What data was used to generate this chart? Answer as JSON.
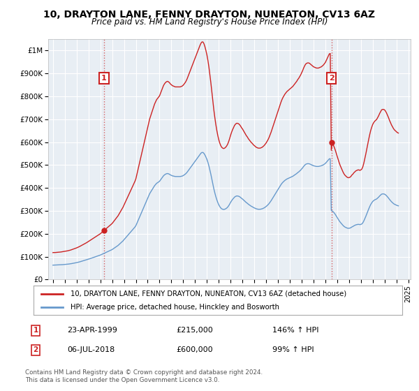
{
  "title": "10, DRAYTON LANE, FENNY DRAYTON, NUNEATON, CV13 6AZ",
  "subtitle": "Price paid vs. HM Land Registry's House Price Index (HPI)",
  "hpi_color": "#6699cc",
  "property_color": "#cc2222",
  "background_color": "#ffffff",
  "plot_bg_color": "#e8eef4",
  "grid_color": "#ffffff",
  "ylim": [
    0,
    1050000
  ],
  "yticks": [
    0,
    100000,
    200000,
    300000,
    400000,
    500000,
    600000,
    700000,
    800000,
    900000,
    1000000
  ],
  "ytick_labels": [
    "£0",
    "£100K",
    "£200K",
    "£300K",
    "£400K",
    "£500K",
    "£600K",
    "£700K",
    "£800K",
    "£900K",
    "£1M"
  ],
  "sale1_year": 1999.31,
  "sale1_price": 215000,
  "sale2_year": 2018.51,
  "sale2_price": 600000,
  "legend_line1": "10, DRAYTON LANE, FENNY DRAYTON, NUNEATON, CV13 6AZ (detached house)",
  "legend_line2": "HPI: Average price, detached house, Hinckley and Bosworth",
  "annotation1_date": "23-APR-1999",
  "annotation1_price": "£215,000",
  "annotation1_hpi": "146% ↑ HPI",
  "annotation2_date": "06-JUL-2018",
  "annotation2_price": "£600,000",
  "annotation2_hpi": "99% ↑ HPI",
  "footer_line1": "Contains HM Land Registry data © Crown copyright and database right 2024.",
  "footer_line2": "This data is licensed under the Open Government Licence v3.0.",
  "hpi_data_x": [
    1995.0,
    1995.083,
    1995.167,
    1995.25,
    1995.333,
    1995.417,
    1995.5,
    1995.583,
    1995.667,
    1995.75,
    1995.833,
    1995.917,
    1996.0,
    1996.083,
    1996.167,
    1996.25,
    1996.333,
    1996.417,
    1996.5,
    1996.583,
    1996.667,
    1996.75,
    1996.833,
    1996.917,
    1997.0,
    1997.083,
    1997.167,
    1997.25,
    1997.333,
    1997.417,
    1997.5,
    1997.583,
    1997.667,
    1997.75,
    1997.833,
    1997.917,
    1998.0,
    1998.083,
    1998.167,
    1998.25,
    1998.333,
    1998.417,
    1998.5,
    1998.583,
    1998.667,
    1998.75,
    1998.833,
    1998.917,
    1999.0,
    1999.083,
    1999.167,
    1999.25,
    1999.333,
    1999.417,
    1999.5,
    1999.583,
    1999.667,
    1999.75,
    1999.833,
    1999.917,
    2000.0,
    2000.083,
    2000.167,
    2000.25,
    2000.333,
    2000.417,
    2000.5,
    2000.583,
    2000.667,
    2000.75,
    2000.833,
    2000.917,
    2001.0,
    2001.083,
    2001.167,
    2001.25,
    2001.333,
    2001.417,
    2001.5,
    2001.583,
    2001.667,
    2001.75,
    2001.833,
    2001.917,
    2002.0,
    2002.083,
    2002.167,
    2002.25,
    2002.333,
    2002.417,
    2002.5,
    2002.583,
    2002.667,
    2002.75,
    2002.833,
    2002.917,
    2003.0,
    2003.083,
    2003.167,
    2003.25,
    2003.333,
    2003.417,
    2003.5,
    2003.583,
    2003.667,
    2003.75,
    2003.833,
    2003.917,
    2004.0,
    2004.083,
    2004.167,
    2004.25,
    2004.333,
    2004.417,
    2004.5,
    2004.583,
    2004.667,
    2004.75,
    2004.833,
    2004.917,
    2005.0,
    2005.083,
    2005.167,
    2005.25,
    2005.333,
    2005.417,
    2005.5,
    2005.583,
    2005.667,
    2005.75,
    2005.833,
    2005.917,
    2006.0,
    2006.083,
    2006.167,
    2006.25,
    2006.333,
    2006.417,
    2006.5,
    2006.583,
    2006.667,
    2006.75,
    2006.833,
    2006.917,
    2007.0,
    2007.083,
    2007.167,
    2007.25,
    2007.333,
    2007.417,
    2007.5,
    2007.583,
    2007.667,
    2007.75,
    2007.833,
    2007.917,
    2008.0,
    2008.083,
    2008.167,
    2008.25,
    2008.333,
    2008.417,
    2008.5,
    2008.583,
    2008.667,
    2008.75,
    2008.833,
    2008.917,
    2009.0,
    2009.083,
    2009.167,
    2009.25,
    2009.333,
    2009.417,
    2009.5,
    2009.583,
    2009.667,
    2009.75,
    2009.833,
    2009.917,
    2010.0,
    2010.083,
    2010.167,
    2010.25,
    2010.333,
    2010.417,
    2010.5,
    2010.583,
    2010.667,
    2010.75,
    2010.833,
    2010.917,
    2011.0,
    2011.083,
    2011.167,
    2011.25,
    2011.333,
    2011.417,
    2011.5,
    2011.583,
    2011.667,
    2011.75,
    2011.833,
    2011.917,
    2012.0,
    2012.083,
    2012.167,
    2012.25,
    2012.333,
    2012.417,
    2012.5,
    2012.583,
    2012.667,
    2012.75,
    2012.833,
    2012.917,
    2013.0,
    2013.083,
    2013.167,
    2013.25,
    2013.333,
    2013.417,
    2013.5,
    2013.583,
    2013.667,
    2013.75,
    2013.833,
    2013.917,
    2014.0,
    2014.083,
    2014.167,
    2014.25,
    2014.333,
    2014.417,
    2014.5,
    2014.583,
    2014.667,
    2014.75,
    2014.833,
    2014.917,
    2015.0,
    2015.083,
    2015.167,
    2015.25,
    2015.333,
    2015.417,
    2015.5,
    2015.583,
    2015.667,
    2015.75,
    2015.833,
    2015.917,
    2016.0,
    2016.083,
    2016.167,
    2016.25,
    2016.333,
    2016.417,
    2016.5,
    2016.583,
    2016.667,
    2016.75,
    2016.833,
    2016.917,
    2017.0,
    2017.083,
    2017.167,
    2017.25,
    2017.333,
    2017.417,
    2017.5,
    2017.583,
    2017.667,
    2017.75,
    2017.833,
    2017.917,
    2018.0,
    2018.083,
    2018.167,
    2018.25,
    2018.333,
    2018.417,
    2018.5,
    2018.583,
    2018.667,
    2018.75,
    2018.833,
    2018.917,
    2019.0,
    2019.083,
    2019.167,
    2019.25,
    2019.333,
    2019.417,
    2019.5,
    2019.583,
    2019.667,
    2019.75,
    2019.833,
    2019.917,
    2020.0,
    2020.083,
    2020.167,
    2020.25,
    2020.333,
    2020.417,
    2020.5,
    2020.583,
    2020.667,
    2020.75,
    2020.833,
    2020.917,
    2021.0,
    2021.083,
    2021.167,
    2021.25,
    2021.333,
    2021.417,
    2021.5,
    2021.583,
    2021.667,
    2021.75,
    2021.833,
    2021.917,
    2022.0,
    2022.083,
    2022.167,
    2022.25,
    2022.333,
    2022.417,
    2022.5,
    2022.583,
    2022.667,
    2022.75,
    2022.833,
    2022.917,
    2023.0,
    2023.083,
    2023.167,
    2023.25,
    2023.333,
    2023.417,
    2023.5,
    2023.583,
    2023.667,
    2023.75,
    2023.833,
    2023.917,
    2024.0,
    2024.083,
    2024.167
  ],
  "hpi_data_y": [
    63000,
    63200,
    63100,
    63300,
    63500,
    63700,
    64000,
    64200,
    64400,
    64800,
    65200,
    65600,
    66000,
    66400,
    66800,
    67200,
    67800,
    68400,
    69000,
    69800,
    70600,
    71400,
    72200,
    73000,
    74000,
    75000,
    76000,
    77200,
    78500,
    79800,
    81000,
    82200,
    83500,
    84800,
    86000,
    87500,
    89000,
    90500,
    92000,
    93500,
    95000,
    96500,
    98000,
    99500,
    101000,
    102500,
    104000,
    105500,
    107000,
    109000,
    111000,
    113000,
    115000,
    117000,
    119000,
    121000,
    123000,
    125000,
    127000,
    129000,
    131000,
    134000,
    137000,
    140000,
    143000,
    146000,
    149000,
    153000,
    157000,
    161000,
    165000,
    169000,
    174000,
    179000,
    184000,
    189000,
    194000,
    199000,
    204000,
    209000,
    214000,
    219000,
    224000,
    229000,
    235000,
    245000,
    255000,
    265000,
    275000,
    285000,
    295000,
    305000,
    315000,
    325000,
    335000,
    345000,
    355000,
    365000,
    375000,
    382000,
    389000,
    396000,
    403000,
    410000,
    415000,
    420000,
    423000,
    426000,
    429000,
    435000,
    441000,
    447000,
    453000,
    457000,
    460000,
    462000,
    463000,
    462000,
    460000,
    457000,
    455000,
    453000,
    452000,
    451000,
    450000,
    450000,
    450000,
    450000,
    450000,
    450000,
    451000,
    452000,
    454000,
    457000,
    460000,
    464000,
    469000,
    475000,
    481000,
    487000,
    493000,
    499000,
    505000,
    511000,
    517000,
    523000,
    529000,
    535000,
    541000,
    547000,
    552000,
    555000,
    555000,
    551000,
    544000,
    535000,
    525000,
    512000,
    497000,
    479000,
    460000,
    439000,
    417000,
    397000,
    379000,
    363000,
    349000,
    337000,
    327000,
    319000,
    313000,
    309000,
    307000,
    306000,
    307000,
    309000,
    312000,
    316000,
    322000,
    329000,
    337000,
    344000,
    350000,
    355000,
    360000,
    363000,
    365000,
    365000,
    364000,
    362000,
    359000,
    355000,
    352000,
    348000,
    344000,
    340000,
    336000,
    333000,
    329000,
    326000,
    323000,
    320000,
    318000,
    315000,
    313000,
    311000,
    309000,
    308000,
    307000,
    307000,
    307000,
    308000,
    309000,
    311000,
    313000,
    316000,
    319000,
    323000,
    327000,
    332000,
    338000,
    344000,
    351000,
    358000,
    365000,
    372000,
    379000,
    386000,
    393000,
    400000,
    407000,
    414000,
    420000,
    425000,
    429000,
    433000,
    436000,
    439000,
    441000,
    443000,
    445000,
    447000,
    449000,
    451000,
    454000,
    457000,
    460000,
    463000,
    467000,
    470000,
    474000,
    478000,
    483000,
    488000,
    494000,
    499000,
    503000,
    505000,
    506000,
    506000,
    505000,
    503000,
    501000,
    499000,
    497000,
    496000,
    495000,
    494000,
    494000,
    494000,
    495000,
    496000,
    497000,
    499000,
    501000,
    504000,
    507000,
    512000,
    517000,
    522000,
    527000,
    528000,
    302000,
    299000,
    296000,
    291000,
    285000,
    278000,
    271000,
    264000,
    257000,
    251000,
    246000,
    241000,
    236000,
    232000,
    229000,
    227000,
    225000,
    224000,
    224000,
    225000,
    227000,
    230000,
    232000,
    235000,
    237000,
    239000,
    240000,
    241000,
    241000,
    240000,
    241000,
    243000,
    248000,
    256000,
    266000,
    276000,
    287000,
    298000,
    309000,
    319000,
    328000,
    335000,
    341000,
    345000,
    348000,
    350000,
    352000,
    356000,
    360000,
    365000,
    369000,
    373000,
    374000,
    374000,
    373000,
    370000,
    366000,
    361000,
    356000,
    350000,
    345000,
    340000,
    336000,
    332000,
    329000,
    327000,
    325000,
    323000,
    322000
  ],
  "xlim": [
    1994.6,
    2025.2
  ],
  "xticks": [
    1995,
    1996,
    1997,
    1998,
    1999,
    2000,
    2001,
    2002,
    2003,
    2004,
    2005,
    2006,
    2007,
    2008,
    2009,
    2010,
    2011,
    2012,
    2013,
    2014,
    2015,
    2016,
    2017,
    2018,
    2019,
    2020,
    2021,
    2022,
    2023,
    2024,
    2025
  ]
}
